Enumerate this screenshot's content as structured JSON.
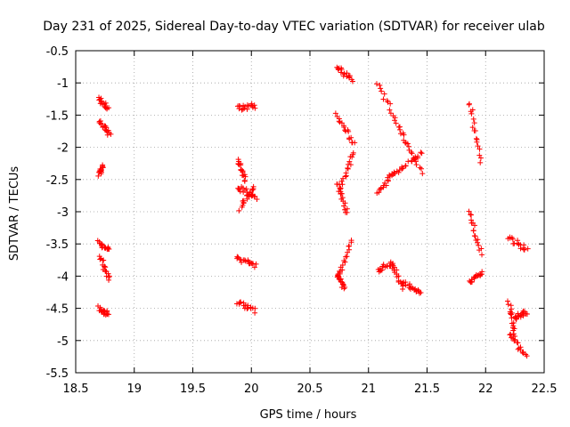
{
  "chart_data": {
    "type": "scatter",
    "title": "Day 231 of 2025, Sidereal Day-to-day VTEC variation (SDTVAR) for receiver ulab",
    "xlabel": "GPS time / hours",
    "ylabel": "SDTVAR / TECUs",
    "xlim": [
      18.5,
      22.5
    ],
    "ylim": [
      -5.5,
      -0.5
    ],
    "xticks": [
      18.5,
      19,
      19.5,
      20,
      20.5,
      21,
      21.5,
      22,
      22.5
    ],
    "xtick_labels": [
      "18.5",
      "19",
      "19.5",
      "20",
      "20.5",
      "21",
      "21.5",
      "22",
      "22.5"
    ],
    "yticks": [
      -5.5,
      -5,
      -4.5,
      -4,
      -3.5,
      -3,
      -2.5,
      -2,
      -1.5,
      -1,
      -0.5
    ],
    "ytick_labels": [
      "-5.5",
      "-5",
      "-4.5",
      "-4",
      "-3.5",
      "-3",
      "-2.5",
      "-2",
      "-1.5",
      "-1",
      "-0.5"
    ],
    "grid": true,
    "marker": "+",
    "marker_color": "#ff0000",
    "segments": [
      {
        "x": [
          18.7,
          18.78
        ],
        "y": [
          -1.25,
          -1.42
        ]
      },
      {
        "x": [
          18.7,
          18.79
        ],
        "y": [
          -1.6,
          -1.8
        ]
      },
      {
        "x": [
          18.7,
          18.73
        ],
        "y": [
          -2.42,
          -2.3
        ]
      },
      {
        "x": [
          18.7,
          18.78
        ],
        "y": [
          -3.48,
          -3.6
        ]
      },
      {
        "x": [
          18.71,
          18.78
        ],
        "y": [
          -3.7,
          -4.05
        ]
      },
      {
        "x": [
          18.7,
          18.78
        ],
        "y": [
          -4.5,
          -4.6
        ]
      },
      {
        "x": [
          19.88,
          20.03
        ],
        "y": [
          -1.4,
          -1.35
        ]
      },
      {
        "x": [
          19.88,
          19.95
        ],
        "y": [
          -2.2,
          -2.5
        ]
      },
      {
        "x": [
          19.88,
          20.04
        ],
        "y": [
          -2.6,
          -2.8
        ]
      },
      {
        "x": [
          19.9,
          20.03
        ],
        "y": [
          -2.95,
          -2.6
        ]
      },
      {
        "x": [
          19.88,
          20.03
        ],
        "y": [
          -3.72,
          -3.85
        ]
      },
      {
        "x": [
          19.88,
          20.03
        ],
        "y": [
          -4.4,
          -4.55
        ]
      },
      {
        "x": [
          20.73,
          20.86
        ],
        "y": [
          -0.75,
          -0.95
        ]
      },
      {
        "x": [
          20.73,
          20.88
        ],
        "y": [
          -1.5,
          -1.95
        ]
      },
      {
        "x": [
          20.75,
          20.88
        ],
        "y": [
          -2.7,
          -2.05
        ]
      },
      {
        "x": [
          20.73,
          20.82
        ],
        "y": [
          -2.55,
          -3.05
        ]
      },
      {
        "x": [
          20.73,
          20.86
        ],
        "y": [
          -4.05,
          -3.45
        ]
      },
      {
        "x": [
          20.74,
          20.79
        ],
        "y": [
          -3.95,
          -4.2
        ]
      },
      {
        "x": [
          21.08,
          21.28
        ],
        "y": [
          -1.0,
          -1.75
        ]
      },
      {
        "x": [
          21.28,
          21.45
        ],
        "y": [
          -1.75,
          -2.4
        ]
      },
      {
        "x": [
          21.08,
          21.22
        ],
        "y": [
          -2.7,
          -2.4
        ]
      },
      {
        "x": [
          21.22,
          21.45
        ],
        "y": [
          -2.4,
          -2.1
        ]
      },
      {
        "x": [
          21.08,
          21.2
        ],
        "y": [
          -3.9,
          -3.8
        ]
      },
      {
        "x": [
          21.2,
          21.3
        ],
        "y": [
          -3.8,
          -4.2
        ]
      },
      {
        "x": [
          21.3,
          21.45
        ],
        "y": [
          -4.1,
          -4.25
        ]
      },
      {
        "x": [
          21.86,
          21.96
        ],
        "y": [
          -1.3,
          -2.2
        ]
      },
      {
        "x": [
          21.86,
          21.96
        ],
        "y": [
          -3.0,
          -3.65
        ]
      },
      {
        "x": [
          21.86,
          21.97
        ],
        "y": [
          -4.1,
          -3.95
        ]
      },
      {
        "x": [
          22.2,
          22.35
        ],
        "y": [
          -3.4,
          -3.6
        ]
      },
      {
        "x": [
          22.2,
          22.25
        ],
        "y": [
          -4.4,
          -4.9
        ]
      },
      {
        "x": [
          22.25,
          22.35
        ],
        "y": [
          -4.65,
          -4.55
        ]
      },
      {
        "x": [
          22.2,
          22.35
        ],
        "y": [
          -4.9,
          -5.25
        ]
      }
    ]
  }
}
